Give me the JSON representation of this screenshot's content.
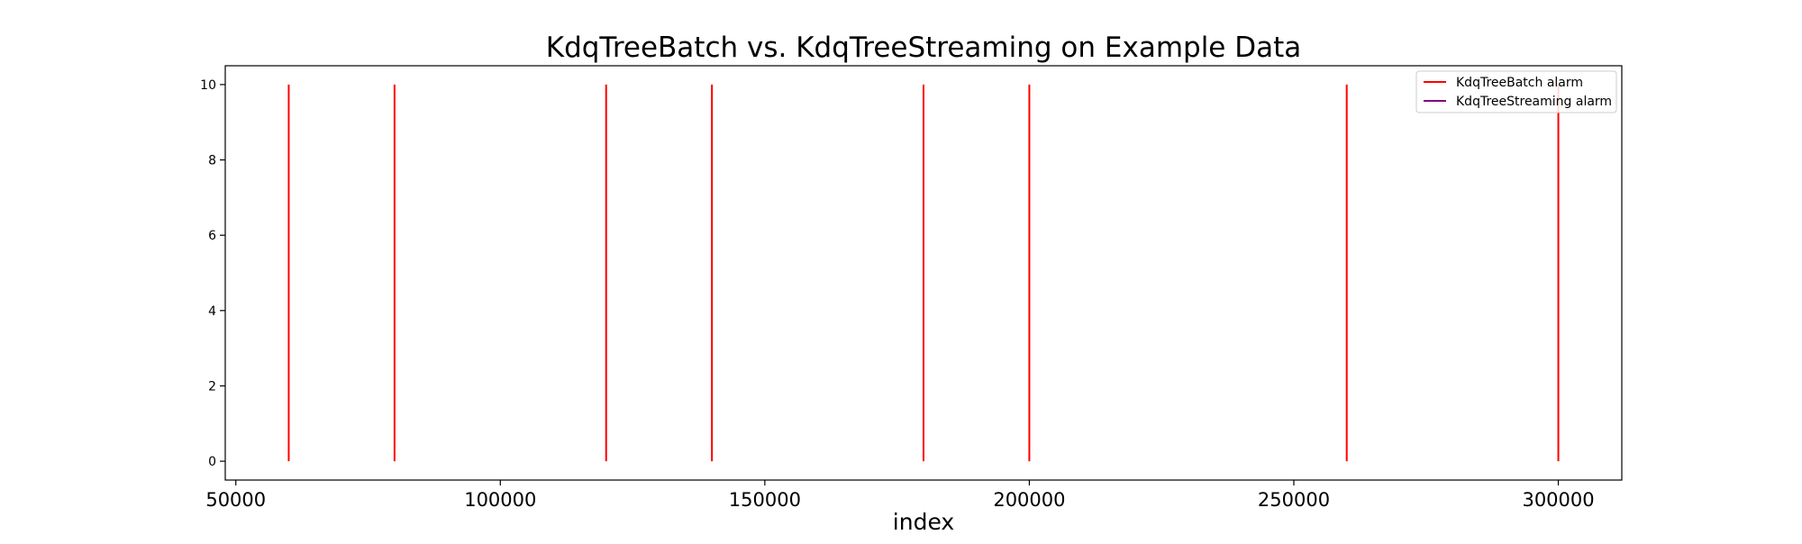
{
  "chart_data": {
    "type": "line",
    "title": "KdqTreeBatch vs. KdqTreeStreaming on Example Data",
    "xlabel": "index",
    "ylabel": "",
    "xlim": [
      48000,
      312000
    ],
    "ylim": [
      -0.5,
      10.5
    ],
    "xticks": [
      50000,
      100000,
      150000,
      200000,
      250000,
      300000
    ],
    "xtick_labels": [
      "50000",
      "100000",
      "150000",
      "200000",
      "250000",
      "300000"
    ],
    "yticks": [
      0,
      2,
      4,
      6,
      8,
      10
    ],
    "ytick_labels": [
      "0",
      "2",
      "4",
      "6",
      "8",
      "10"
    ],
    "grid": false,
    "legend_position": "top-right",
    "series": [
      {
        "name": "KdqTreeBatch alarm",
        "color": "#ff0000",
        "kind": "vlines",
        "x": [
          60000,
          80000,
          120000,
          140000,
          180000,
          200000,
          260000,
          300000
        ],
        "ymin": 0,
        "ymax": 10
      },
      {
        "name": "KdqTreeStreaming alarm",
        "color": "#800080",
        "kind": "vlines",
        "x": [],
        "ymin": 0,
        "ymax": 10
      }
    ]
  }
}
